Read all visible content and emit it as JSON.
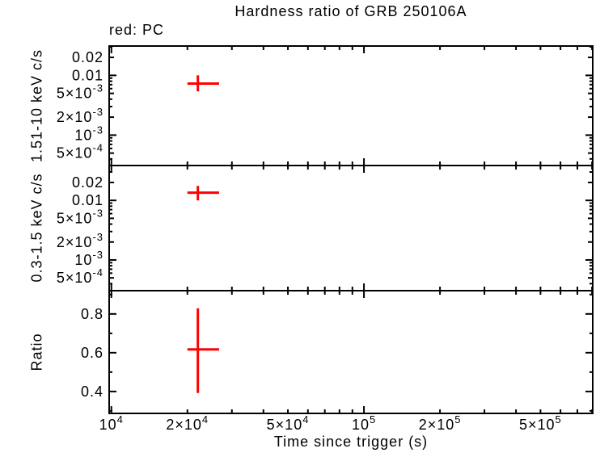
{
  "figure": {
    "title": "Hardness ratio of GRB 250106A",
    "legend": "red: PC",
    "xlabel": "Time since trigger (s)"
  },
  "colors": {
    "data_series": "#ff0000",
    "axis": "#000000",
    "background": "#ffffff",
    "text": "#000000"
  },
  "chart_data": {
    "type": "scatter",
    "title": "Hardness ratio of GRB 250106A",
    "legend": "red: PC",
    "legend_position": "top-left",
    "grid": false,
    "series_color": "#ff0000",
    "xlabel": "Time since trigger (s)",
    "x_scale": "log",
    "xlim": [
      9800,
      805000
    ],
    "x_major_ticks": [
      10000,
      100000
    ],
    "x_minor_ticks": [
      20000,
      30000,
      40000,
      50000,
      60000,
      70000,
      80000,
      90000,
      200000,
      300000,
      400000,
      500000,
      600000,
      700000,
      800000
    ],
    "x_tick_labels": [
      {
        "v": 10000,
        "t": "10^4"
      },
      {
        "v": 20000,
        "t": "2×10^4"
      },
      {
        "v": 50000,
        "t": "5×10^4"
      },
      {
        "v": 100000,
        "t": "10^5"
      },
      {
        "v": 200000,
        "t": "2×10^5"
      },
      {
        "v": 500000,
        "t": "5×10^5"
      }
    ],
    "panels": [
      {
        "ylabel": "1.51-10 keV c/s",
        "y_scale": "log",
        "ylim": [
          0.00031,
          0.031
        ],
        "y_major_ticks": [
          0.01,
          0.001
        ],
        "y_labeled_ticks": [
          0.02,
          0.005,
          0.002,
          0.0005
        ],
        "y_minor_ticks": [
          0.03,
          0.009,
          0.008,
          0.007,
          0.006,
          0.004,
          0.003,
          0.0009,
          0.0008,
          0.0007,
          0.0006,
          0.0004
        ],
        "y_tick_labels": [
          {
            "v": 0.02,
            "t": "0.02"
          },
          {
            "v": 0.01,
            "t": "0.01"
          },
          {
            "v": 0.005,
            "t": "5×10^-3"
          },
          {
            "v": 0.002,
            "t": "2×10^-3"
          },
          {
            "v": 0.001,
            "t": "10^-3"
          },
          {
            "v": 0.0005,
            "t": "5×10^-4"
          }
        ],
        "points": [
          {
            "x": 22000,
            "xlo": 20000,
            "xhi": 26700,
            "y": 0.0073,
            "ylo": 0.0054,
            "yhi": 0.01
          }
        ]
      },
      {
        "ylabel": "0.3-1.5 keV c/s",
        "y_scale": "log",
        "ylim": [
          0.000305,
          0.0385
        ],
        "y_major_ticks": [
          0.01,
          0.001
        ],
        "y_labeled_ticks": [
          0.02,
          0.005,
          0.002,
          0.0005
        ],
        "y_minor_ticks": [
          0.03,
          0.009,
          0.008,
          0.007,
          0.006,
          0.004,
          0.003,
          0.0009,
          0.0008,
          0.0007,
          0.0006,
          0.0004
        ],
        "y_tick_labels": [
          {
            "v": 0.02,
            "t": "0.02"
          },
          {
            "v": 0.01,
            "t": "0.01"
          },
          {
            "v": 0.005,
            "t": "5×10^-3"
          },
          {
            "v": 0.002,
            "t": "2×10^-3"
          },
          {
            "v": 0.001,
            "t": "10^-3"
          },
          {
            "v": 0.0005,
            "t": "5×10^-4"
          }
        ],
        "points": [
          {
            "x": 22000,
            "xlo": 20000,
            "xhi": 26700,
            "y": 0.0135,
            "ylo": 0.01,
            "yhi": 0.0175
          }
        ]
      },
      {
        "ylabel": "Ratio",
        "y_scale": "linear",
        "ylim": [
          0.287,
          0.92
        ],
        "y_major_ticks": [
          0.8,
          0.6,
          0.4
        ],
        "y_labeled_ticks": [],
        "y_minor_ticks": [
          0.9,
          0.7,
          0.5,
          0.3
        ],
        "y_tick_labels": [
          {
            "v": 0.8,
            "t": "0.8"
          },
          {
            "v": 0.6,
            "t": "0.6"
          },
          {
            "v": 0.4,
            "t": "0.4"
          }
        ],
        "points": [
          {
            "x": 22000,
            "xlo": 20000,
            "xhi": 26700,
            "y": 0.617,
            "ylo": 0.392,
            "yhi": 0.829
          }
        ]
      }
    ]
  }
}
